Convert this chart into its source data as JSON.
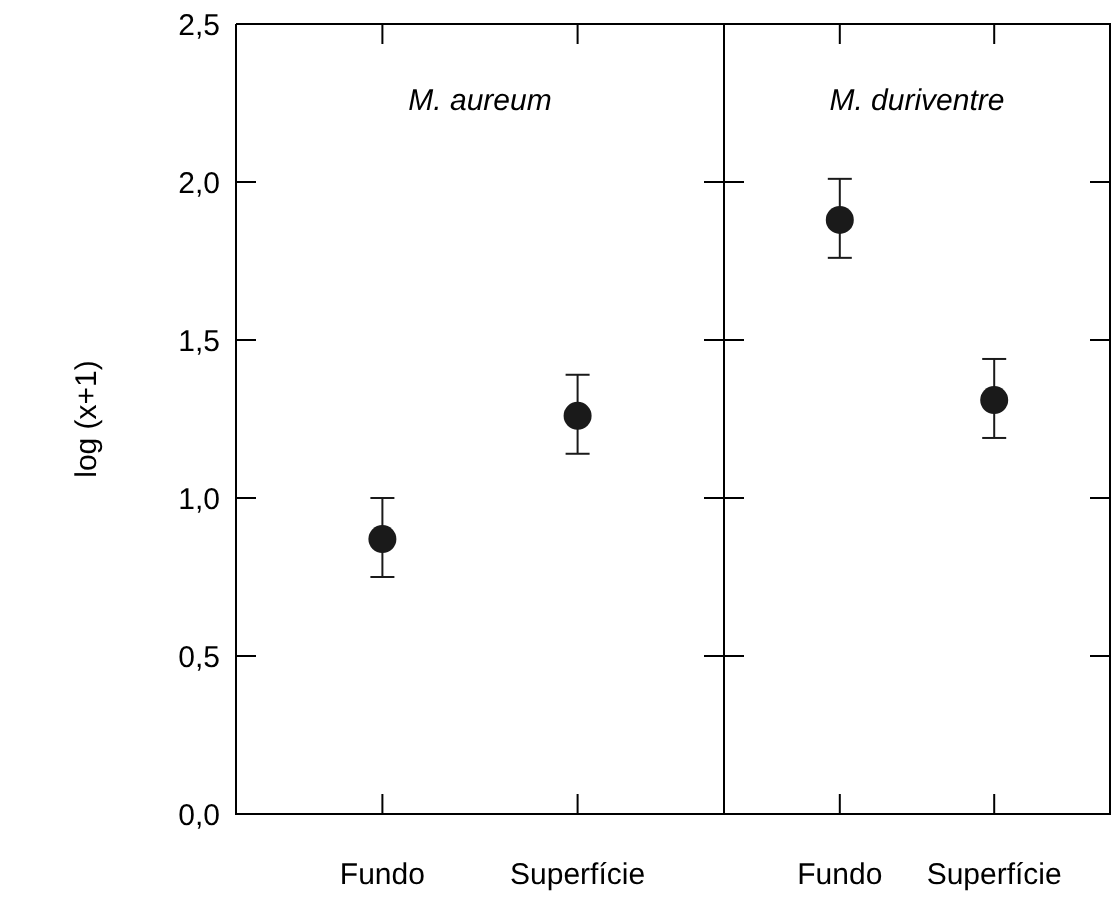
{
  "chart_data": [
    {
      "type": "scatter",
      "title": "M. aureum",
      "ylabel": "log (x+1)",
      "categories": [
        "Fundo",
        "Superfície"
      ],
      "marker": "circle",
      "series": [
        {
          "color": "#1a1a1a",
          "values": [
            0.87,
            1.26
          ],
          "errors": [
            [
              0.75,
              1.0
            ],
            [
              1.14,
              1.39
            ]
          ]
        }
      ],
      "ylim": [
        0,
        2.5
      ],
      "yticks": [
        {
          "value": 0,
          "label": "0,0"
        },
        {
          "value": 0.5,
          "label": "0,5"
        },
        {
          "value": 1,
          "label": "1,0"
        },
        {
          "value": 1.5,
          "label": "1,5"
        },
        {
          "value": 2,
          "label": "2,0"
        },
        {
          "value": 2.5,
          "label": "2,5"
        }
      ]
    },
    {
      "type": "scatter",
      "title": "M. duriventre",
      "categories": [
        "Fundo",
        "Superfície"
      ],
      "marker": "circle",
      "tick_labels": "x",
      "series": [
        {
          "color": "#1a1a1a",
          "values": [
            1.88,
            1.31
          ],
          "errors": [
            [
              1.76,
              2.01
            ],
            [
              1.19,
              1.44
            ]
          ]
        }
      ],
      "ylim": [
        0,
        2.5
      ],
      "yticks": [
        {
          "value": 0,
          "label": null
        },
        {
          "value": 0.5,
          "label": null
        },
        {
          "value": 1,
          "label": null
        },
        {
          "value": 1.5,
          "label": null
        },
        {
          "value": 2,
          "label": null
        },
        {
          "value": 2.5,
          "label": null
        }
      ]
    }
  ]
}
